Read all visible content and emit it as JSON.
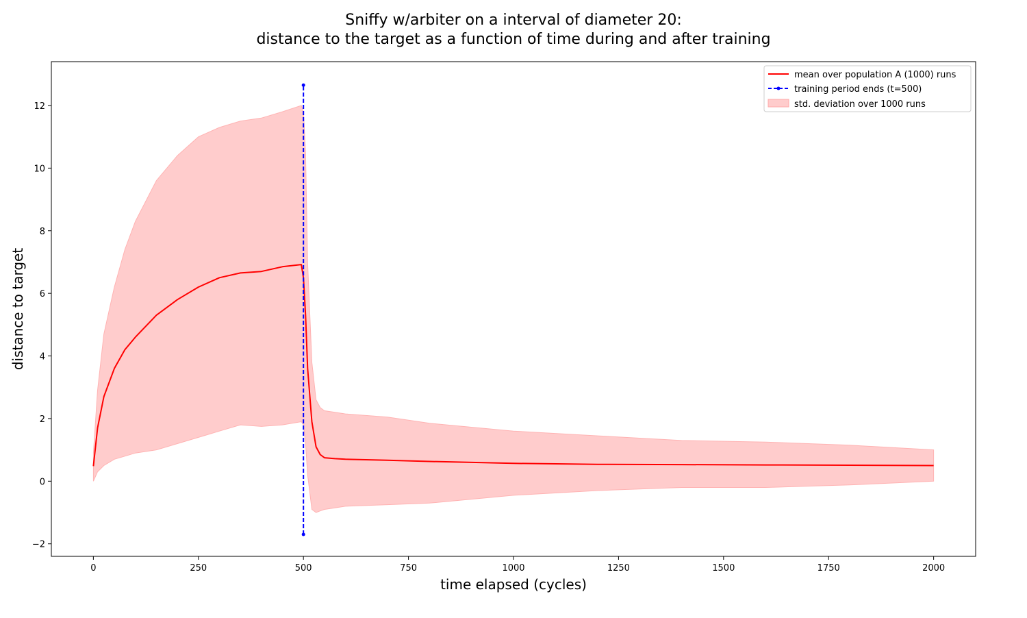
{
  "chart_data": {
    "type": "line",
    "title": [
      "Sniffy w/arbiter on a interval of diameter 20:",
      "distance to the target as a function of time during and after training"
    ],
    "xlabel": "time elapsed (cycles)",
    "ylabel": "distance to target",
    "xlim": [
      -100,
      2100
    ],
    "ylim": [
      -2.4,
      13.4
    ],
    "xticks": [
      0,
      250,
      500,
      750,
      1000,
      1250,
      1500,
      1750,
      2000
    ],
    "yticks": [
      -2,
      0,
      2,
      4,
      6,
      8,
      10,
      12
    ],
    "xtick_labels": [
      "0",
      "250",
      "500",
      "750",
      "1000",
      "1250",
      "1500",
      "1750",
      "2000"
    ],
    "ytick_labels": [
      "−2",
      "0",
      "2",
      "4",
      "6",
      "8",
      "10",
      "12"
    ],
    "grid": false,
    "legend_position": "top-right",
    "legend": [
      "mean over population A (1000) runs",
      "training period ends (t=500)",
      "std. deviation over 1000 runs"
    ],
    "colors": {
      "mean": "#ff0000",
      "band": "#ffcccc",
      "marker": "#0000ff"
    },
    "series": [
      {
        "name": "mean over population A (1000) runs",
        "x": [
          0,
          10,
          25,
          50,
          75,
          100,
          150,
          200,
          250,
          300,
          350,
          400,
          450,
          495,
          500,
          505,
          510,
          520,
          530,
          540,
          550,
          575,
          600,
          700,
          800,
          1000,
          1200,
          1400,
          1600,
          1800,
          2000
        ],
        "y": [
          0.48,
          1.7,
          2.7,
          3.6,
          4.2,
          4.6,
          5.3,
          5.8,
          6.2,
          6.5,
          6.65,
          6.7,
          6.85,
          6.92,
          6.5,
          5.3,
          3.6,
          1.9,
          1.1,
          0.85,
          0.75,
          0.72,
          0.7,
          0.67,
          0.63,
          0.57,
          0.54,
          0.53,
          0.52,
          0.51,
          0.5
        ]
      },
      {
        "name": "std. deviation over 1000 runs",
        "x": [
          0,
          10,
          25,
          50,
          75,
          100,
          150,
          200,
          250,
          300,
          350,
          400,
          450,
          495,
          500,
          505,
          510,
          520,
          530,
          540,
          550,
          575,
          600,
          700,
          800,
          1000,
          1200,
          1400,
          1600,
          1800,
          2000
        ],
        "lower": [
          0.0,
          0.3,
          0.5,
          0.7,
          0.8,
          0.9,
          1.0,
          1.2,
          1.4,
          1.6,
          1.8,
          1.75,
          1.8,
          1.9,
          1.8,
          1.2,
          0.2,
          -0.9,
          -1.0,
          -0.95,
          -0.9,
          -0.85,
          -0.8,
          -0.75,
          -0.7,
          -0.45,
          -0.3,
          -0.2,
          -0.2,
          -0.12,
          0.0
        ],
        "upper": [
          0.9,
          2.9,
          4.7,
          6.2,
          7.4,
          8.3,
          9.6,
          10.4,
          11.0,
          11.3,
          11.5,
          11.6,
          11.8,
          12.0,
          11.8,
          10.5,
          7.0,
          3.8,
          2.6,
          2.35,
          2.25,
          2.2,
          2.15,
          2.05,
          1.85,
          1.6,
          1.45,
          1.3,
          1.25,
          1.15,
          1.0
        ]
      }
    ],
    "marker_line": {
      "name": "training period ends (t=500)",
      "x": 500,
      "y": [
        -1.7,
        12.65
      ]
    }
  }
}
